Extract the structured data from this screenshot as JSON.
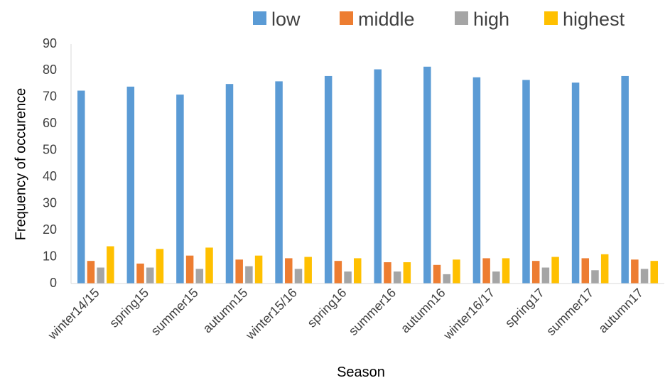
{
  "chart_data": {
    "type": "bar",
    "title": "",
    "xlabel": "Season",
    "ylabel": "Frequency of occurence",
    "ylim": [
      0,
      90
    ],
    "yticks": [
      0,
      10,
      20,
      30,
      40,
      50,
      60,
      70,
      80,
      90
    ],
    "grid": false,
    "legend": "top",
    "categories": [
      "winter14/15",
      "spring15",
      "summer15",
      "autumn15",
      "winter15/16",
      "spring16",
      "summer16",
      "autumn16",
      "winter16/17",
      "spring17",
      "summer17",
      "autumn17"
    ],
    "series": [
      {
        "name": "low",
        "color": "#5B9BD5",
        "values": [
          72.5,
          74,
          71,
          75,
          76,
          78,
          80.5,
          81.5,
          77.5,
          76.5,
          75.5,
          78
        ]
      },
      {
        "name": "middle",
        "color": "#ED7D31",
        "values": [
          8.5,
          7.5,
          10.5,
          9,
          9.5,
          8.5,
          8,
          7,
          9.5,
          8.5,
          9.5,
          9
        ]
      },
      {
        "name": "high",
        "color": "#A5A5A5",
        "values": [
          6,
          6,
          5.5,
          6.5,
          5.5,
          4.5,
          4.5,
          3.5,
          4.5,
          6,
          5,
          5.5
        ]
      },
      {
        "name": "highest",
        "color": "#FFC000",
        "values": [
          14,
          13,
          13.5,
          10.5,
          10,
          9.5,
          8,
          9,
          9.5,
          10,
          11,
          8.5
        ]
      }
    ]
  }
}
